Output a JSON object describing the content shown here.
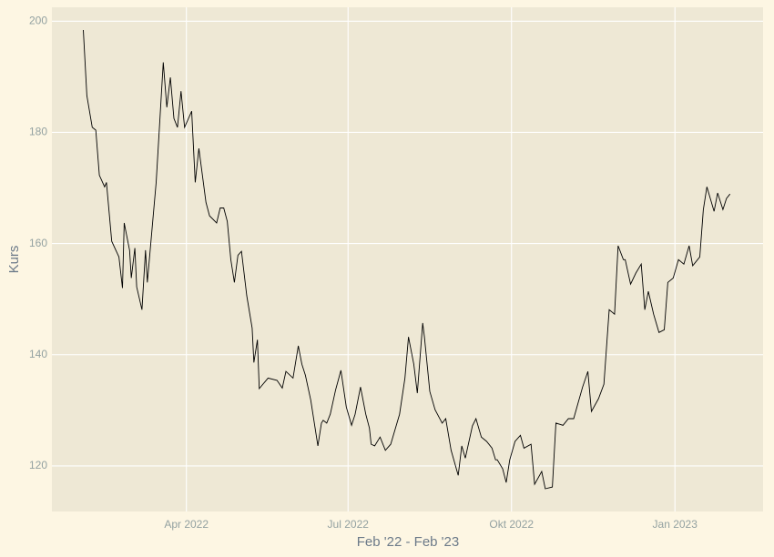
{
  "chart_data": {
    "type": "line",
    "x_label": "Feb '22 - Feb '23",
    "y_label": "Kurs",
    "color": "#000000",
    "grid": true,
    "xlim": [
      14.3,
      414.6
    ],
    "xticks": [
      {
        "value": 90,
        "label": "Apr 2022"
      },
      {
        "value": 181,
        "label": "Jul 2022"
      },
      {
        "value": 273,
        "label": "Okt 2022"
      },
      {
        "value": 365,
        "label": "Jan 2023"
      }
    ],
    "ylim": [
      111.8,
      202.5
    ],
    "yticks": [
      120,
      140,
      160,
      180,
      200
    ],
    "x": [
      32,
      34,
      37,
      39,
      41,
      44,
      45,
      48,
      52,
      54,
      55,
      58,
      59,
      61,
      62,
      65,
      67,
      68,
      73,
      77,
      79,
      81,
      83,
      85,
      87,
      89,
      93,
      95,
      97,
      101,
      103,
      107,
      109,
      111,
      113,
      115,
      117,
      119,
      121,
      124,
      127,
      128,
      130,
      131,
      136,
      141,
      144,
      146,
      150,
      153,
      155,
      157,
      160,
      164,
      166,
      167,
      169,
      171,
      174,
      177,
      180,
      183,
      185,
      188,
      191,
      193,
      194,
      196,
      199,
      202,
      205,
      210,
      213,
      215,
      218,
      220,
      223,
      224,
      227,
      230,
      234,
      236,
      239,
      243,
      245,
      247,
      251,
      253,
      256,
      259,
      262,
      264,
      265,
      268,
      270,
      272,
      275,
      278,
      280,
      284,
      286,
      290,
      292,
      296,
      298,
      302,
      305,
      308,
      313,
      316,
      318,
      322,
      325,
      328,
      331,
      333,
      336,
      337,
      340,
      343,
      346,
      348,
      350,
      353,
      356,
      359,
      361,
      364,
      367,
      370,
      373,
      375,
      379,
      381,
      383,
      387,
      389,
      392,
      394,
      396
    ],
    "values": [
      198.4,
      186.6,
      180.9,
      180.4,
      172.3,
      170.2,
      171,
      160.4,
      157.6,
      152,
      163.7,
      158.8,
      153.8,
      159.2,
      152.2,
      148.1,
      158.8,
      153,
      171,
      192.6,
      184.5,
      189.9,
      182.5,
      180.9,
      187.4,
      180.9,
      183.8,
      171,
      177.1,
      167.4,
      165,
      163.7,
      166.4,
      166.4,
      164,
      157.1,
      153,
      157.9,
      158.6,
      150.6,
      144.8,
      138.6,
      142.7,
      133.9,
      135.8,
      135.4,
      134,
      137,
      135.8,
      141.6,
      138.3,
      136.3,
      131.8,
      123.6,
      127.7,
      128.2,
      127.7,
      129.3,
      133.7,
      137.2,
      130.6,
      127.3,
      129.3,
      134.2,
      129.3,
      126.8,
      123.9,
      123.6,
      125.2,
      122.8,
      123.9,
      129.3,
      135.8,
      143.2,
      138.3,
      133.1,
      145.7,
      143.2,
      133.4,
      130.1,
      127.7,
      128.5,
      122.8,
      118.3,
      123.6,
      121.4,
      127.2,
      128.5,
      125.2,
      124.4,
      123.2,
      121.1,
      121.1,
      119.5,
      117,
      121.1,
      124.4,
      125.5,
      123.2,
      123.9,
      116.7,
      119,
      115.9,
      116.2,
      127.7,
      127.3,
      128.5,
      128.5,
      134.2,
      137,
      129.8,
      132.1,
      134.7,
      148.1,
      147.3,
      159.6,
      157.1,
      157.1,
      152.7,
      154.7,
      156.3,
      148.1,
      151.4,
      147.3,
      144,
      144.5,
      153,
      153.8,
      157.1,
      156.3,
      159.6,
      156,
      157.6,
      166.1,
      170.2,
      165.8,
      169.1,
      166.1,
      168.1,
      168.9
    ]
  }
}
